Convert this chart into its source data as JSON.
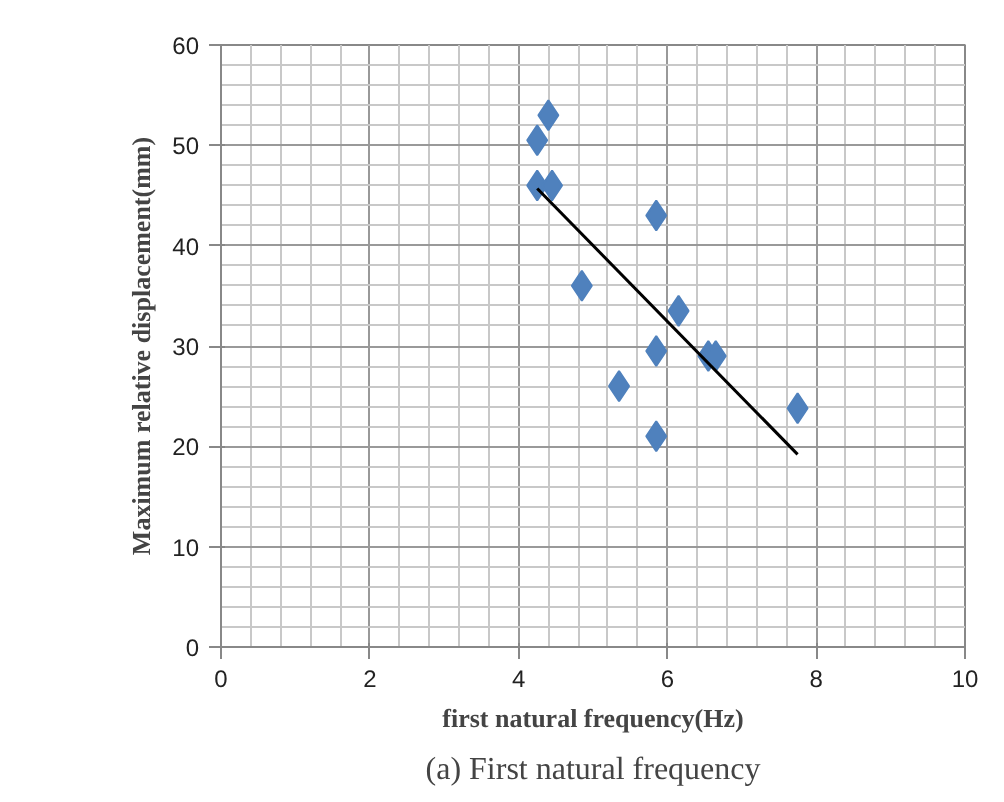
{
  "chart_data": {
    "type": "scatter",
    "xlabel": "first natural frequency(Hz)",
    "ylabel": "Maximum relative displacement(mm)",
    "annotations": [
      "(a) First natural frequency"
    ],
    "xlim": [
      0,
      10
    ],
    "ylim": [
      0,
      60
    ],
    "xticks": [
      0,
      2,
      4,
      6,
      8,
      10
    ],
    "yticks": [
      0,
      10,
      20,
      30,
      40,
      50,
      60
    ],
    "grid": true,
    "series": [
      {
        "color": "#4f81bd",
        "marker": "diamond",
        "x": [
          4.25,
          4.4,
          4.25,
          4.45,
          4.85,
          5.35,
          5.85,
          5.85,
          5.85,
          6.15,
          6.55,
          6.65,
          7.75
        ],
        "values": [
          50.5,
          53,
          46,
          46,
          36,
          26,
          43,
          29.5,
          21,
          33.5,
          29,
          29,
          23.8
        ]
      },
      {
        "type": "line",
        "marker": "none",
        "color": "#000000",
        "x": [
          4.25,
          7.75
        ],
        "values": [
          45.7,
          19.2
        ]
      }
    ]
  }
}
